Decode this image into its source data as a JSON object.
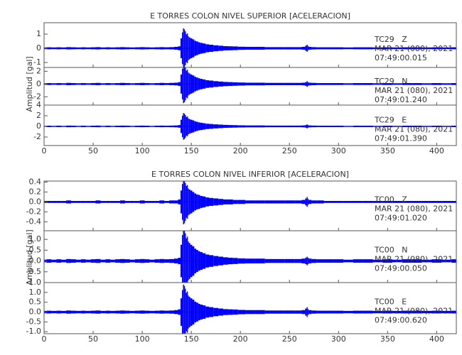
{
  "chart_data": [
    {
      "type": "waveform",
      "title": "E TORRES COLON NIVEL SUPERIOR [ACELERACION]",
      "y_label": "Amplitud [gal]",
      "xlim": [
        0,
        420
      ],
      "xticks": [
        0,
        50,
        100,
        150,
        200,
        250,
        300,
        350,
        400
      ],
      "x": [
        0,
        5,
        10,
        15,
        20,
        25,
        30,
        35,
        40,
        45,
        50,
        55,
        60,
        65,
        70,
        75,
        80,
        85,
        90,
        95,
        100,
        105,
        110,
        115,
        120,
        125,
        130,
        135,
        138,
        140,
        141,
        142,
        143,
        144,
        145,
        146,
        147,
        148,
        150,
        152,
        154,
        156,
        158,
        160,
        163,
        166,
        170,
        175,
        180,
        185,
        190,
        195,
        200,
        210,
        220,
        230,
        240,
        250,
        260,
        265,
        267,
        268,
        269,
        270,
        275,
        280,
        290,
        300,
        310,
        320,
        330,
        340,
        350,
        360,
        370,
        380,
        390,
        400,
        410,
        420
      ],
      "panels": [
        {
          "station": "TC29   Z",
          "date": "MAR 21 (080), 2021",
          "time": "07:49:00.015",
          "color": "#0000ff",
          "ylim": [
            -1.35,
            1.8
          ],
          "yticks": [
            -1,
            0,
            1
          ],
          "values": [
            0.06,
            0.07,
            0.06,
            0.07,
            0.06,
            0.08,
            0.07,
            0.06,
            0.07,
            0.06,
            0.07,
            0.08,
            0.06,
            0.07,
            0.06,
            0.07,
            0.08,
            0.07,
            0.06,
            0.07,
            0.08,
            0.07,
            0.06,
            0.07,
            0.08,
            0.07,
            0.08,
            0.1,
            0.14,
            0.7,
            1.12,
            1.4,
            1.33,
            1.19,
            0.98,
            1.05,
            0.84,
            0.77,
            0.7,
            0.63,
            0.53,
            0.48,
            0.42,
            0.38,
            0.34,
            0.28,
            0.25,
            0.21,
            0.18,
            0.15,
            0.14,
            0.13,
            0.11,
            0.1,
            0.1,
            0.08,
            0.08,
            0.08,
            0.08,
            0.1,
            0.18,
            0.25,
            0.15,
            0.1,
            0.08,
            0.07,
            0.07,
            0.07,
            0.06,
            0.07,
            0.07,
            0.06,
            0.07,
            0.06,
            0.07,
            0.07,
            0.06,
            0.07,
            0.06,
            0.07
          ]
        },
        {
          "station": "TC29   N",
          "date": "MAR 21 (080), 2021",
          "time": "07:49:01.240",
          "color": "#0000ff",
          "ylim": [
            -3.3,
            2.6
          ],
          "yticks": [
            -2,
            0,
            2
          ],
          "values": [
            0.12,
            0.15,
            0.12,
            0.15,
            0.12,
            0.18,
            0.15,
            0.12,
            0.15,
            0.12,
            0.15,
            0.18,
            0.12,
            0.15,
            0.12,
            0.15,
            0.18,
            0.15,
            0.12,
            0.15,
            0.18,
            0.15,
            0.12,
            0.15,
            0.18,
            0.15,
            0.18,
            0.21,
            0.3,
            1.5,
            2.4,
            3.0,
            2.85,
            2.55,
            2.1,
            2.25,
            1.8,
            1.65,
            1.5,
            1.35,
            1.14,
            1.02,
            0.9,
            0.81,
            0.72,
            0.6,
            0.54,
            0.45,
            0.39,
            0.33,
            0.3,
            0.27,
            0.24,
            0.21,
            0.21,
            0.18,
            0.18,
            0.18,
            0.18,
            0.21,
            0.3,
            0.45,
            0.3,
            0.21,
            0.18,
            0.15,
            0.15,
            0.15,
            0.12,
            0.15,
            0.15,
            0.12,
            0.15,
            0.12,
            0.15,
            0.15,
            0.12,
            0.15,
            0.12,
            0.15
          ]
        },
        {
          "station": "TC29   E",
          "date": "MAR 21 (080), 2021",
          "time": "07:49:01.390",
          "color": "#0000ff",
          "ylim": [
            -3.6,
            4
          ],
          "yticks": [
            -2,
            0,
            2,
            4
          ],
          "values": [
            0.1,
            0.13,
            0.1,
            0.13,
            0.1,
            0.15,
            0.13,
            0.1,
            0.13,
            0.1,
            0.13,
            0.15,
            0.1,
            0.13,
            0.1,
            0.13,
            0.15,
            0.13,
            0.1,
            0.13,
            0.15,
            0.13,
            0.1,
            0.13,
            0.15,
            0.13,
            0.15,
            0.18,
            0.25,
            1.25,
            2.0,
            2.5,
            2.38,
            2.13,
            1.75,
            1.88,
            1.5,
            1.38,
            1.25,
            1.13,
            0.95,
            0.85,
            0.75,
            0.68,
            0.6,
            0.5,
            0.45,
            0.38,
            0.33,
            0.28,
            0.25,
            0.23,
            0.2,
            0.18,
            0.18,
            0.15,
            0.15,
            0.15,
            0.15,
            0.18,
            0.25,
            0.38,
            0.25,
            0.18,
            0.15,
            0.13,
            0.13,
            0.13,
            0.1,
            0.13,
            0.13,
            0.1,
            0.13,
            0.1,
            0.13,
            0.13,
            0.1,
            0.13,
            0.1,
            0.13
          ]
        }
      ]
    },
    {
      "type": "waveform",
      "title": "E TORRES COLON NIVEL INFERIOR [ACELERACION]",
      "y_label": "Amplitud [gal]",
      "xlim": [
        0,
        420
      ],
      "xticks": [
        0,
        50,
        100,
        150,
        200,
        250,
        300,
        350,
        400
      ],
      "x": [
        0,
        5,
        10,
        15,
        20,
        25,
        30,
        35,
        40,
        45,
        50,
        55,
        60,
        65,
        70,
        75,
        80,
        85,
        90,
        95,
        100,
        105,
        110,
        115,
        120,
        125,
        130,
        135,
        138,
        140,
        141,
        142,
        143,
        144,
        145,
        146,
        147,
        148,
        150,
        152,
        154,
        156,
        158,
        160,
        163,
        166,
        170,
        175,
        180,
        185,
        190,
        195,
        200,
        210,
        220,
        230,
        240,
        250,
        260,
        265,
        267,
        268,
        269,
        270,
        275,
        280,
        290,
        300,
        310,
        320,
        330,
        340,
        350,
        360,
        370,
        380,
        390,
        400,
        410,
        420
      ],
      "panels": [
        {
          "station": "TC00   Z",
          "date": "MAR 21 (080), 2021",
          "time": "07:49:01.020",
          "color": "#0000ff",
          "ylim": [
            -0.58,
            0.42
          ],
          "yticks": [
            {
              "value": -0.4,
              "label": "-0.4"
            },
            {
              "value": -0.2,
              "label": "-0.2"
            },
            {
              "value": 0,
              "label": "0.0"
            },
            {
              "value": 0.2,
              "label": "0.2"
            },
            {
              "value": 0.4,
              "label": "0.4"
            }
          ],
          "values": [
            0.02,
            0.02,
            0.02,
            0.02,
            0.02,
            0.03,
            0.02,
            0.02,
            0.02,
            0.02,
            0.02,
            0.03,
            0.02,
            0.02,
            0.02,
            0.02,
            0.03,
            0.02,
            0.02,
            0.02,
            0.03,
            0.02,
            0.02,
            0.02,
            0.03,
            0.02,
            0.03,
            0.03,
            0.05,
            0.23,
            0.36,
            0.45,
            0.43,
            0.38,
            0.32,
            0.34,
            0.27,
            0.25,
            0.23,
            0.2,
            0.17,
            0.15,
            0.14,
            0.12,
            0.11,
            0.09,
            0.08,
            0.07,
            0.06,
            0.05,
            0.05,
            0.04,
            0.04,
            0.03,
            0.03,
            0.03,
            0.03,
            0.03,
            0.03,
            0.04,
            0.07,
            0.1,
            0.06,
            0.04,
            0.03,
            0.03,
            0.02,
            0.02,
            0.02,
            0.02,
            0.02,
            0.02,
            0.02,
            0.02,
            0.02,
            0.02,
            0.02,
            0.02,
            0.02,
            0.02
          ]
        },
        {
          "station": "TC00   N",
          "date": "MAR 21 (080), 2021",
          "time": "07:49:00.050",
          "color": "#0000ff",
          "ylim": [
            -1.0,
            1.4
          ],
          "yticks": [
            {
              "value": -1.0,
              "label": "-1.0"
            },
            {
              "value": -0.5,
              "label": "-0.5"
            },
            {
              "value": 0,
              "label": "0.0"
            },
            {
              "value": 0.5,
              "label": "0.5"
            },
            {
              "value": 1.0,
              "label": "1.0"
            }
          ],
          "values": [
            0.06,
            0.08,
            0.06,
            0.08,
            0.06,
            0.09,
            0.08,
            0.06,
            0.08,
            0.06,
            0.08,
            0.09,
            0.06,
            0.08,
            0.06,
            0.08,
            0.09,
            0.08,
            0.06,
            0.08,
            0.09,
            0.08,
            0.06,
            0.08,
            0.09,
            0.08,
            0.09,
            0.11,
            0.15,
            0.75,
            1.2,
            1.5,
            1.43,
            1.28,
            1.05,
            1.13,
            0.9,
            0.83,
            0.75,
            0.68,
            0.57,
            0.51,
            0.45,
            0.41,
            0.36,
            0.3,
            0.27,
            0.23,
            0.2,
            0.17,
            0.15,
            0.14,
            0.12,
            0.11,
            0.11,
            0.09,
            0.09,
            0.09,
            0.09,
            0.11,
            0.15,
            0.2,
            0.15,
            0.11,
            0.09,
            0.08,
            0.08,
            0.08,
            0.06,
            0.08,
            0.08,
            0.06,
            0.08,
            0.06,
            0.08,
            0.08,
            0.06,
            0.08,
            0.06,
            0.08
          ]
        },
        {
          "station": "TC00   E",
          "date": "MAR 21 (080), 2021",
          "time": "07:49:00.620",
          "color": "#0000ff",
          "ylim": [
            -1.1,
            1.5
          ],
          "yticks": [
            {
              "value": -1.0,
              "label": "-1.0"
            },
            {
              "value": -0.5,
              "label": "-0.5"
            },
            {
              "value": 0,
              "label": "0.0"
            },
            {
              "value": 0.5,
              "label": "0.5"
            },
            {
              "value": 1.0,
              "label": "1.0"
            }
          ],
          "values": [
            0.06,
            0.07,
            0.06,
            0.07,
            0.06,
            0.08,
            0.07,
            0.06,
            0.07,
            0.06,
            0.07,
            0.08,
            0.06,
            0.07,
            0.06,
            0.07,
            0.08,
            0.07,
            0.06,
            0.07,
            0.08,
            0.07,
            0.06,
            0.07,
            0.08,
            0.07,
            0.08,
            0.1,
            0.14,
            0.7,
            1.12,
            1.4,
            1.33,
            1.19,
            0.98,
            1.05,
            0.84,
            0.77,
            0.7,
            0.63,
            0.53,
            0.48,
            0.42,
            0.38,
            0.34,
            0.28,
            0.25,
            0.21,
            0.18,
            0.15,
            0.14,
            0.13,
            0.11,
            0.1,
            0.1,
            0.08,
            0.08,
            0.08,
            0.08,
            0.1,
            0.18,
            0.25,
            0.15,
            0.1,
            0.08,
            0.07,
            0.07,
            0.07,
            0.06,
            0.07,
            0.07,
            0.06,
            0.07,
            0.06,
            0.07,
            0.07,
            0.06,
            0.07,
            0.06,
            0.07
          ]
        }
      ]
    }
  ]
}
